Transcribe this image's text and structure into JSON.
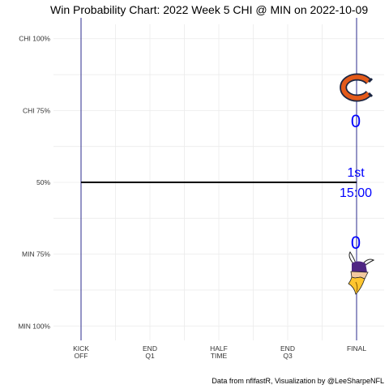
{
  "chart_data": {
    "type": "line",
    "title": "Win Probability Chart: 2022 Week 5 CHI @ MIN on 2022-10-09",
    "xlabel": "",
    "ylabel": "",
    "x_ticks": [
      {
        "value": 0,
        "lines": [
          "KICK",
          "OFF"
        ]
      },
      {
        "value": 900,
        "lines": [
          "END",
          "Q1"
        ]
      },
      {
        "value": 1800,
        "lines": [
          "HALF",
          "TIME"
        ]
      },
      {
        "value": 2700,
        "lines": [
          "END",
          "Q3"
        ]
      },
      {
        "value": 3600,
        "lines": [
          "FINAL"
        ]
      }
    ],
    "xlim": [
      -360,
      3960
    ],
    "y_ticks": [
      {
        "value": 1.0,
        "label": "CHI 100%"
      },
      {
        "value": 0.75,
        "label": "CHI 75%"
      },
      {
        "value": 0.5,
        "label": "50%"
      },
      {
        "value": 0.25,
        "label": "MIN 75%"
      },
      {
        "value": 0.0,
        "label": "MIN 100%"
      }
    ],
    "ylim": [
      -0.05,
      1.05
    ],
    "grid": true,
    "series": [
      {
        "values": [
          [
            0,
            0.5
          ],
          [
            3600,
            0.5
          ]
        ],
        "color": "#000000"
      }
    ],
    "vertical_lines": [
      0,
      3600
    ],
    "vertical_line_color": "#2b2b8c",
    "away_team": {
      "abbr": "CHI",
      "score": "0",
      "logo": "bears-logo"
    },
    "home_team": {
      "abbr": "MIN",
      "score": "0",
      "logo": "vikings-logo"
    },
    "game_quarter": "1st",
    "game_clock": "15:00",
    "annotation_color": "#0000ff",
    "caption": "Data from nflfastR, Visualization by @LeeSharpeNFL"
  }
}
